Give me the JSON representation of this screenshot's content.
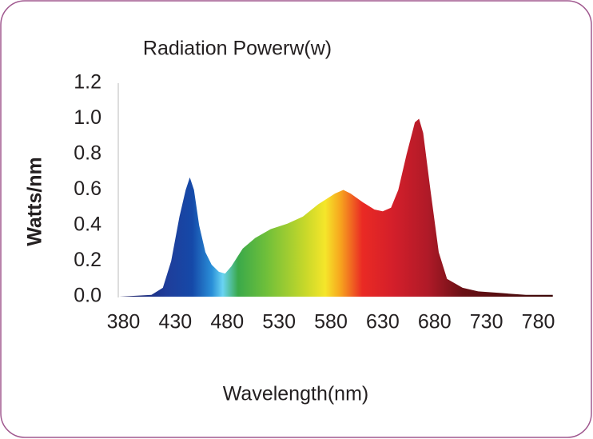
{
  "chart_data": {
    "type": "area",
    "title": "Radiation Powerw(w)",
    "y_label": "Watts/nm",
    "x_label": "Wavelength(nm)",
    "x": [
      376,
      407,
      418,
      426,
      434,
      440,
      444,
      448,
      453,
      459,
      465,
      472,
      478,
      484,
      495,
      507,
      522,
      538,
      553,
      568,
      584,
      592,
      599,
      611,
      622,
      630,
      638,
      645,
      653,
      661,
      665,
      669,
      676,
      684,
      692,
      707,
      722,
      745,
      768,
      794
    ],
    "values": [
      0,
      0.01,
      0.05,
      0.2,
      0.45,
      0.6,
      0.67,
      0.6,
      0.4,
      0.25,
      0.18,
      0.14,
      0.13,
      0.17,
      0.27,
      0.33,
      0.38,
      0.41,
      0.45,
      0.52,
      0.58,
      0.6,
      0.58,
      0.53,
      0.49,
      0.48,
      0.5,
      0.6,
      0.8,
      0.98,
      1.0,
      0.92,
      0.6,
      0.25,
      0.1,
      0.05,
      0.03,
      0.02,
      0.01,
      0.01
    ],
    "xlim": [
      375,
      795
    ],
    "ylim": [
      0,
      1.2
    ],
    "xticks": [
      380,
      430,
      480,
      530,
      580,
      630,
      680,
      730,
      780
    ],
    "yticks": [
      {
        "value": 0,
        "label": "0.0"
      },
      0.2,
      0.4,
      0.6,
      0.8,
      {
        "value": 1,
        "label": "1.0"
      },
      1.2
    ],
    "grid": false
  }
}
